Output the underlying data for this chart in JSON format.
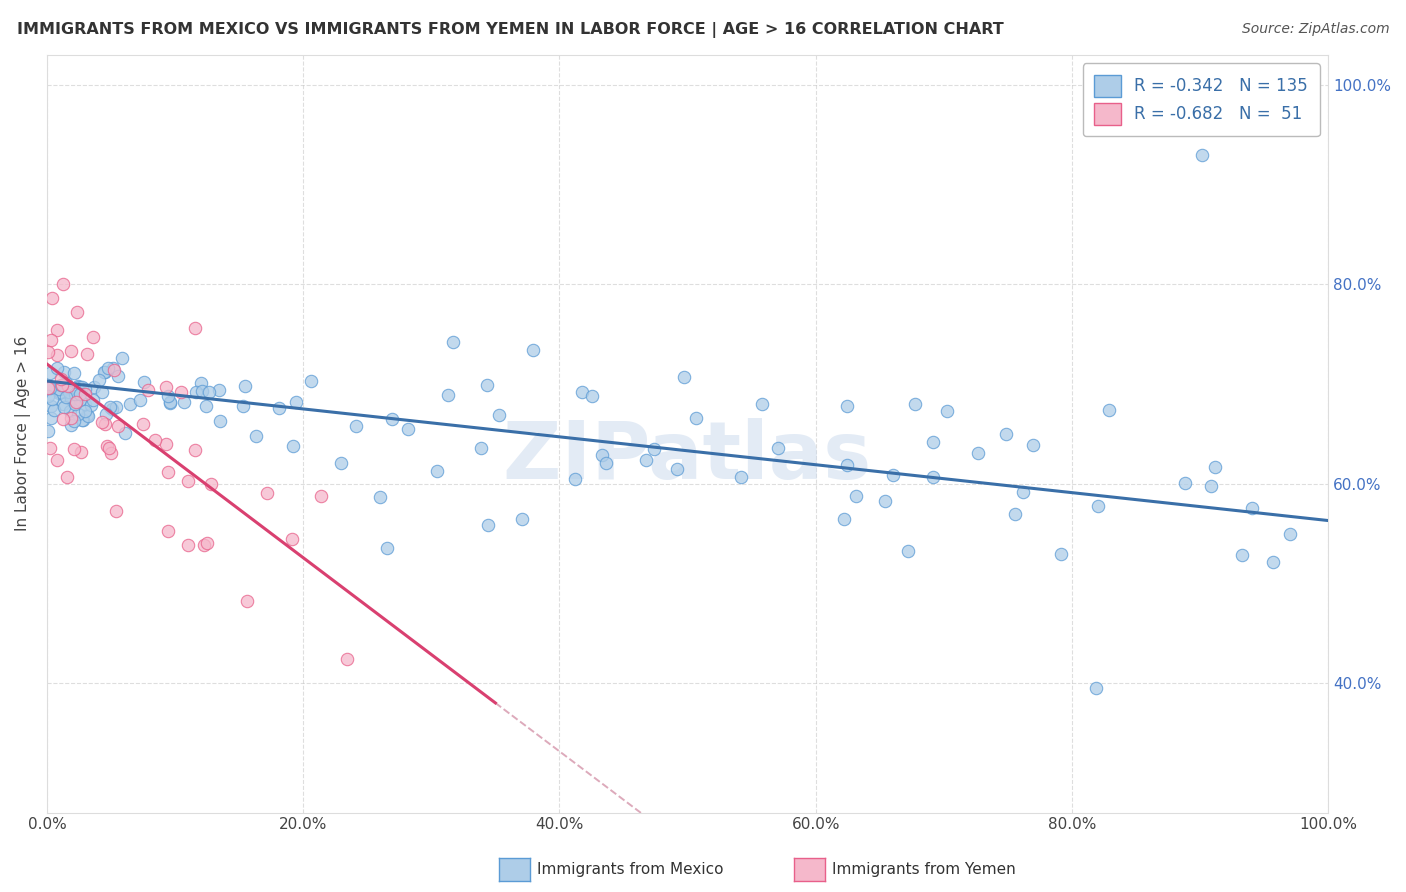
{
  "title": "IMMIGRANTS FROM MEXICO VS IMMIGRANTS FROM YEMEN IN LABOR FORCE | AGE > 16 CORRELATION CHART",
  "source": "Source: ZipAtlas.com",
  "ylabel": "In Labor Force | Age > 16",
  "xlim": [
    0.0,
    1.0
  ],
  "ylim": [
    0.27,
    1.03
  ],
  "x_tick_labels": [
    "0.0%",
    "20.0%",
    "40.0%",
    "60.0%",
    "80.0%",
    "100.0%"
  ],
  "x_tick_positions": [
    0.0,
    0.2,
    0.4,
    0.6,
    0.8,
    1.0
  ],
  "y_tick_labels": [
    "40.0%",
    "60.0%",
    "80.0%",
    "100.0%"
  ],
  "y_tick_positions": [
    0.4,
    0.6,
    0.8,
    1.0
  ],
  "mexico_color": "#aecde8",
  "mexico_edge_color": "#5b9bd5",
  "yemen_color": "#f5b8cb",
  "yemen_edge_color": "#e8608a",
  "regression_mexico_color": "#3a6fa8",
  "regression_yemen_color": "#d94070",
  "R_mexico": -0.342,
  "N_mexico": 135,
  "R_yemen": -0.682,
  "N_yemen": 51,
  "legend_label_mexico": "Immigrants from Mexico",
  "legend_label_yemen": "Immigrants from Yemen",
  "watermark_text": "ZIPat las",
  "title_fontsize": 11.5,
  "source_fontsize": 10,
  "tick_fontsize": 11,
  "legend_fontsize": 12,
  "scatter_size": 80,
  "scatter_alpha": 0.75,
  "scatter_linewidth": 0.8,
  "regression_linewidth": 2.2,
  "grid_color": "#c8c8c8",
  "grid_alpha": 0.6
}
